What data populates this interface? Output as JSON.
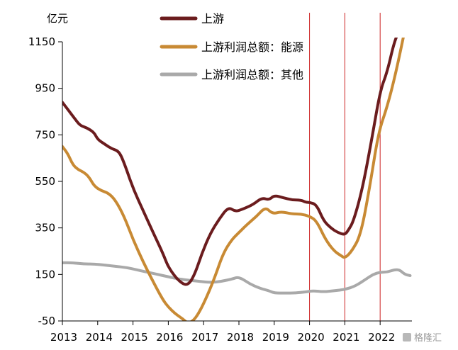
{
  "chart_data": {
    "type": "line",
    "title": "",
    "xlabel": "",
    "ylabel": "亿元",
    "ylim": [
      -50,
      1150
    ],
    "xlim": [
      2013.0,
      2022.9
    ],
    "yticks": [
      1150,
      950,
      750,
      550,
      350,
      150,
      -50
    ],
    "xticks": [
      2013,
      2014,
      2015,
      2016,
      2017,
      2018,
      2019,
      2020,
      2021,
      2022
    ],
    "legend_position": "top-center",
    "vlines": [
      2020.0,
      2021.0,
      2022.0
    ],
    "vline_color": "#cc2222",
    "series": [
      {
        "name": "上游",
        "color": "#6b1c1e",
        "x": [
          2013.0,
          2013.15,
          2013.35,
          2013.5,
          2013.7,
          2013.9,
          2014.0,
          2014.2,
          2014.4,
          2014.6,
          2014.75,
          2015.0,
          2015.3,
          2015.6,
          2015.85,
          2016.0,
          2016.3,
          2016.55,
          2016.75,
          2016.95,
          2017.2,
          2017.45,
          2017.7,
          2017.9,
          2018.1,
          2018.4,
          2018.65,
          2018.85,
          2019.0,
          2019.25,
          2019.5,
          2019.75,
          2019.9,
          2020.0,
          2020.2,
          2020.4,
          2020.6,
          2020.8,
          2021.0,
          2021.1,
          2021.25,
          2021.5,
          2021.75,
          2022.0,
          2022.2,
          2022.4,
          2022.55
        ],
        "y": [
          890,
          860,
          820,
          790,
          780,
          760,
          730,
          710,
          690,
          680,
          630,
          520,
          420,
          320,
          240,
          180,
          120,
          100,
          150,
          240,
          330,
          390,
          440,
          420,
          430,
          450,
          480,
          470,
          490,
          480,
          470,
          470,
          460,
          460,
          450,
          380,
          350,
          330,
          320,
          340,
          380,
          520,
          720,
          940,
          1020,
          1150,
          1200
        ]
      },
      {
        "name": "上游利润总额：能源",
        "color": "#c88a34",
        "x": [
          2013.0,
          2013.15,
          2013.3,
          2013.45,
          2013.6,
          2013.75,
          2013.9,
          2014.1,
          2014.3,
          2014.5,
          2014.75,
          2015.0,
          2015.3,
          2015.6,
          2015.85,
          2016.0,
          2016.2,
          2016.4,
          2016.55,
          2016.7,
          2016.85,
          2017.05,
          2017.3,
          2017.55,
          2017.8,
          2018.0,
          2018.2,
          2018.5,
          2018.75,
          2018.95,
          2019.2,
          2019.5,
          2019.75,
          2020.0,
          2020.2,
          2020.45,
          2020.7,
          2020.9,
          2021.0,
          2021.2,
          2021.45,
          2021.7,
          2021.95,
          2022.2,
          2022.45,
          2022.7
        ],
        "y": [
          700,
          670,
          620,
          600,
          590,
          570,
          530,
          510,
          500,
          470,
          400,
          300,
          200,
          110,
          40,
          10,
          -20,
          -40,
          -60,
          -50,
          -20,
          40,
          130,
          240,
          300,
          330,
          360,
          400,
          440,
          410,
          420,
          410,
          410,
          400,
          380,
          300,
          250,
          230,
          220,
          250,
          320,
          520,
          760,
          870,
          1020,
          1200
        ]
      },
      {
        "name": "上游利润总额：其他",
        "color": "#a9a9a9",
        "x": [
          2013.0,
          2013.3,
          2013.6,
          2013.9,
          2014.2,
          2014.5,
          2014.8,
          2015.1,
          2015.4,
          2015.7,
          2016.0,
          2016.3,
          2016.6,
          2016.9,
          2017.2,
          2017.5,
          2017.8,
          2018.0,
          2018.3,
          2018.6,
          2018.85,
          2019.0,
          2019.3,
          2019.6,
          2019.9,
          2020.1,
          2020.4,
          2020.7,
          2021.0,
          2021.3,
          2021.6,
          2021.8,
          2022.0,
          2022.2,
          2022.4,
          2022.55,
          2022.7,
          2022.85
        ],
        "y": [
          200,
          200,
          195,
          195,
          190,
          185,
          180,
          170,
          160,
          150,
          140,
          130,
          125,
          120,
          115,
          120,
          130,
          140,
          110,
          90,
          80,
          70,
          70,
          70,
          75,
          80,
          75,
          80,
          85,
          100,
          130,
          150,
          160,
          160,
          170,
          170,
          150,
          145
        ]
      }
    ]
  },
  "watermark": {
    "text": "格隆汇"
  }
}
